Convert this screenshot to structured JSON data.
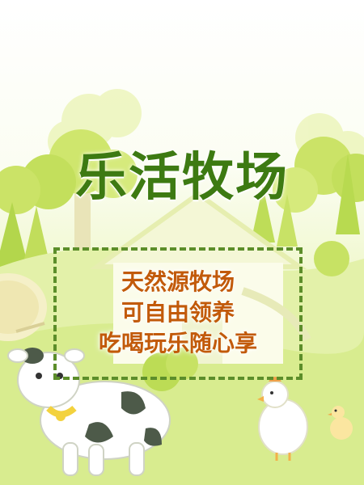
{
  "poster": {
    "title": "乐活牧场",
    "slogan_lines": [
      "天然源牧场",
      "可自由领养",
      "吃喝玩乐随心享"
    ]
  },
  "colors": {
    "title": "#3d7a12",
    "slogan": "#c25a0a",
    "frame": "#5c8e2a",
    "tree_light": "#cfe66d",
    "tree_mid": "#b3d64c",
    "grass": "#d8ec8f"
  },
  "icons": [
    "tree-icon",
    "barn-icon",
    "hay-bale-icon",
    "cow-icon",
    "chicken-icon",
    "chick-icon"
  ]
}
